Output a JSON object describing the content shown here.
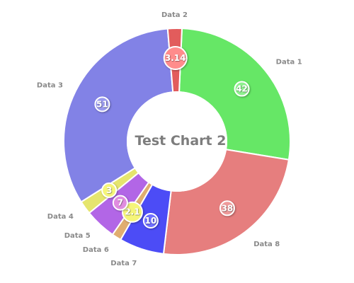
{
  "chart_data": {
    "type": "pie",
    "variant": "donut",
    "title": "Test Chart 2",
    "categories": [
      "Data 1",
      "Data 8",
      "Data 7",
      "Data 6",
      "Data 5",
      "Data 4",
      "Data 3",
      "Data 2"
    ],
    "values": [
      42,
      38,
      10,
      2.1,
      7,
      3,
      51,
      3.14
    ],
    "value_labels": [
      "42",
      "38",
      "10",
      "2.1",
      "7",
      "3",
      "51",
      "3.14"
    ],
    "colors": [
      "#66e766",
      "#e67e7e",
      "#4c4cf6",
      "#e0ad70",
      "#b266e6",
      "#e5e56e",
      "#8282e6",
      "#e25c5c"
    ],
    "badge_colors": [
      "#8ef08e",
      "#ee9a9a",
      "#7070ff",
      "#f5f57a",
      "#e08ce0",
      "#f5f57a",
      "#9a9aee",
      "#ff8c8c"
    ],
    "legend": "none",
    "grid": false
  }
}
